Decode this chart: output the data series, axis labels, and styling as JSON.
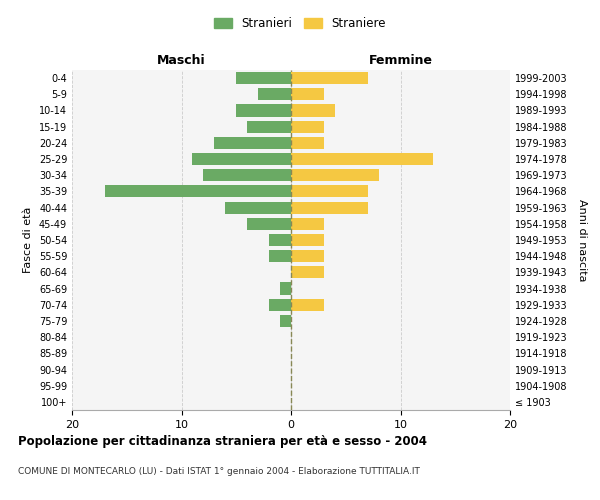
{
  "age_groups": [
    "100+",
    "95-99",
    "90-94",
    "85-89",
    "80-84",
    "75-79",
    "70-74",
    "65-69",
    "60-64",
    "55-59",
    "50-54",
    "45-49",
    "40-44",
    "35-39",
    "30-34",
    "25-29",
    "20-24",
    "15-19",
    "10-14",
    "5-9",
    "0-4"
  ],
  "birth_years": [
    "≤ 1903",
    "1904-1908",
    "1909-1913",
    "1914-1918",
    "1919-1923",
    "1924-1928",
    "1929-1933",
    "1934-1938",
    "1939-1943",
    "1944-1948",
    "1949-1953",
    "1954-1958",
    "1959-1963",
    "1964-1968",
    "1969-1973",
    "1974-1978",
    "1979-1983",
    "1984-1988",
    "1989-1993",
    "1994-1998",
    "1999-2003"
  ],
  "maschi": [
    0,
    0,
    0,
    0,
    0,
    1,
    2,
    1,
    0,
    2,
    2,
    4,
    6,
    17,
    8,
    9,
    7,
    4,
    5,
    3,
    5
  ],
  "femmine": [
    0,
    0,
    0,
    0,
    0,
    0,
    3,
    0,
    3,
    3,
    3,
    3,
    7,
    7,
    8,
    13,
    3,
    3,
    4,
    3,
    7
  ],
  "color_maschi": "#6aaa64",
  "color_femmine": "#f5c842",
  "title": "Popolazione per cittadinanza straniera per età e sesso - 2004",
  "subtitle": "COMUNE DI MONTECARLO (LU) - Dati ISTAT 1° gennaio 2004 - Elaborazione TUTTITALIA.IT",
  "xlabel_left": "Maschi",
  "xlabel_right": "Femmine",
  "ylabel_left": "Fasce di età",
  "ylabel_right": "Anni di nascita",
  "legend_stranieri": "Stranieri",
  "legend_straniere": "Straniere",
  "xlim": 20,
  "bg_color": "#f5f5f5",
  "bar_height": 0.75
}
